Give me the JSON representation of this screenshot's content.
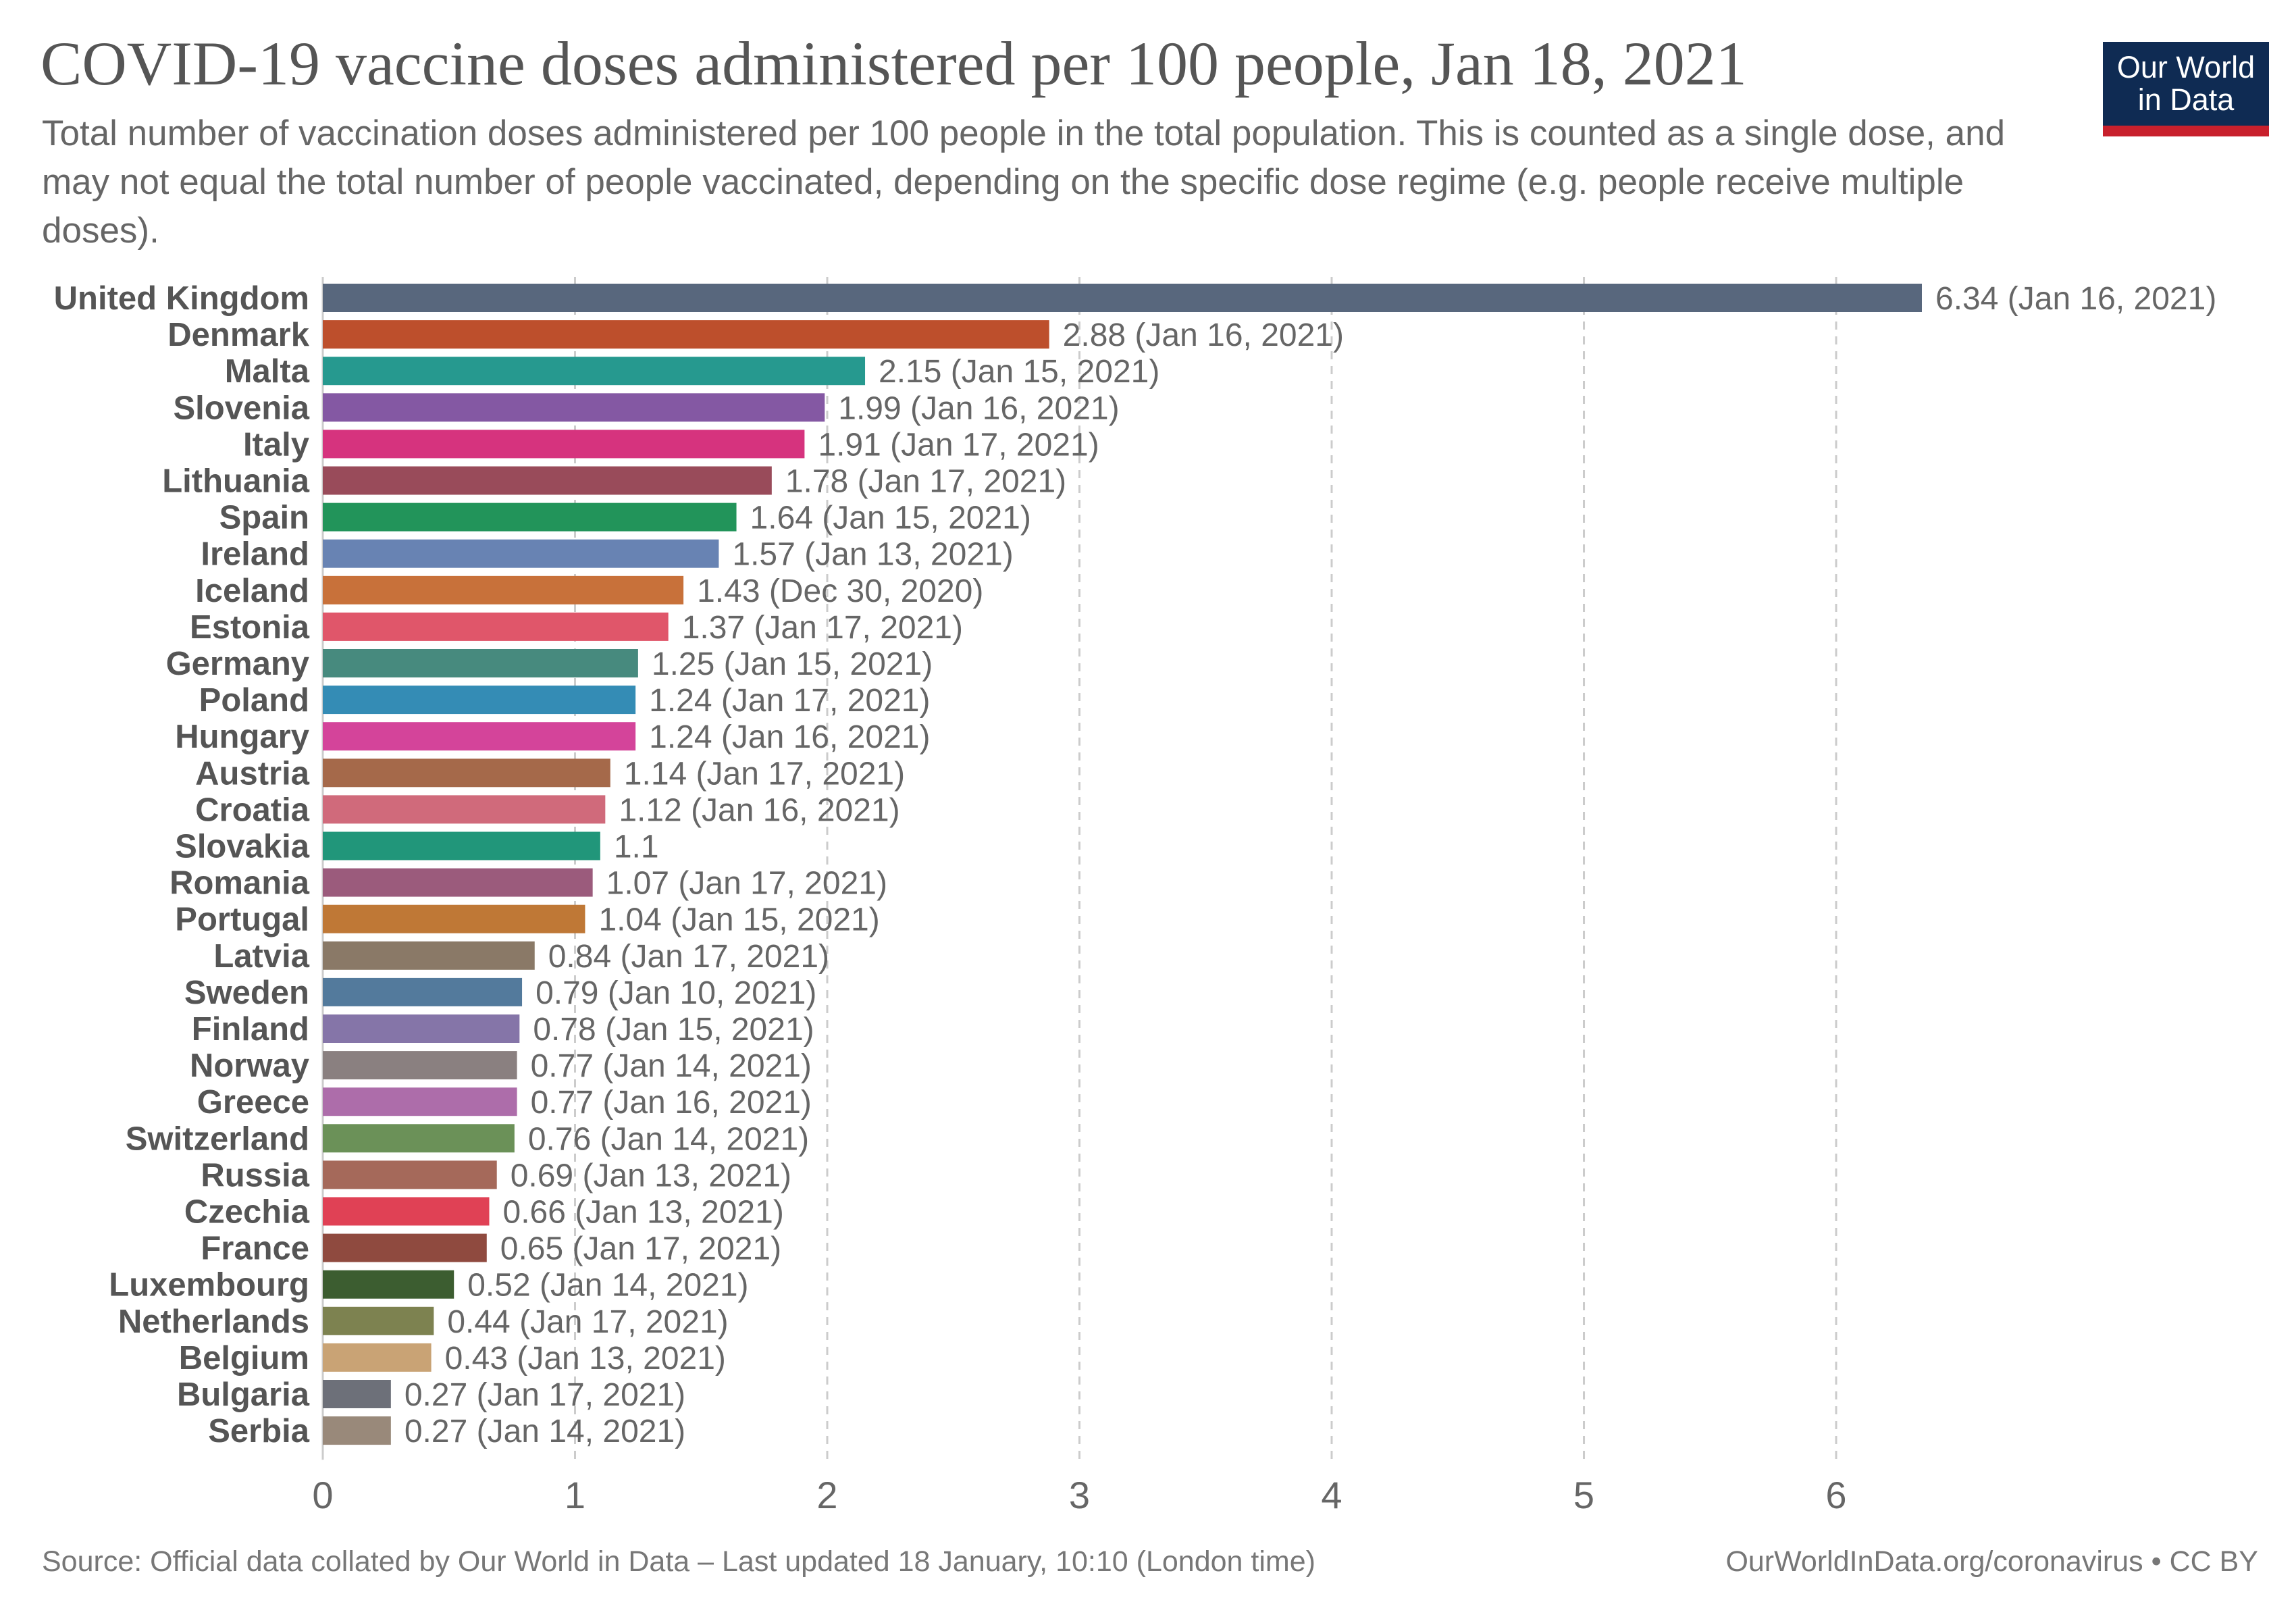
{
  "title": "COVID-19 vaccine doses administered per 100 people, Jan 18, 2021",
  "subtitle": "Total number of vaccination doses administered per 100 people in the total population. This is counted as a single dose, and may not equal the total number of people vaccinated, depending on the specific dose regime (e.g. people receive multiple doses).",
  "logo": {
    "line1": "Our World",
    "line2": "in Data",
    "bg_color": "#0f2b53",
    "accent_color": "#c8202c"
  },
  "footer": {
    "source": "Source: Official data collated by Our World in Data – Last updated 18 January, 10:10 (London time)",
    "right": "OurWorldInData.org/coronavirus • CC BY"
  },
  "chart_data": {
    "type": "bar",
    "orientation": "horizontal",
    "xlim": [
      0,
      6.34
    ],
    "xticks": [
      0,
      1,
      2,
      3,
      4,
      5,
      6
    ],
    "grid": true,
    "categories": [
      "United Kingdom",
      "Denmark",
      "Malta",
      "Slovenia",
      "Italy",
      "Lithuania",
      "Spain",
      "Ireland",
      "Iceland",
      "Estonia",
      "Germany",
      "Poland",
      "Hungary",
      "Austria",
      "Croatia",
      "Slovakia",
      "Romania",
      "Portugal",
      "Latvia",
      "Sweden",
      "Finland",
      "Norway",
      "Greece",
      "Switzerland",
      "Russia",
      "Czechia",
      "France",
      "Luxembourg",
      "Netherlands",
      "Belgium",
      "Bulgaria",
      "Serbia"
    ],
    "values": [
      6.34,
      2.88,
      2.15,
      1.99,
      1.91,
      1.78,
      1.64,
      1.57,
      1.43,
      1.37,
      1.25,
      1.24,
      1.24,
      1.14,
      1.12,
      1.1,
      1.07,
      1.04,
      0.84,
      0.79,
      0.78,
      0.77,
      0.77,
      0.76,
      0.69,
      0.66,
      0.65,
      0.52,
      0.44,
      0.43,
      0.27,
      0.27
    ],
    "value_labels": [
      "6.34 (Jan 16, 2021)",
      "2.88 (Jan 16, 2021)",
      "2.15 (Jan 15, 2021)",
      "1.99 (Jan 16, 2021)",
      "1.91 (Jan 17, 2021)",
      "1.78 (Jan 17, 2021)",
      "1.64 (Jan 15, 2021)",
      "1.57 (Jan 13, 2021)",
      "1.43 (Dec 30, 2020)",
      "1.37 (Jan 17, 2021)",
      "1.25 (Jan 15, 2021)",
      "1.24 (Jan 17, 2021)",
      "1.24 (Jan 16, 2021)",
      "1.14 (Jan 17, 2021)",
      "1.12 (Jan 16, 2021)",
      "1.1",
      "1.07 (Jan 17, 2021)",
      "1.04 (Jan 15, 2021)",
      "0.84 (Jan 17, 2021)",
      "0.79 (Jan 10, 2021)",
      "0.78 (Jan 15, 2021)",
      "0.77 (Jan 14, 2021)",
      "0.77 (Jan 16, 2021)",
      "0.76 (Jan 14, 2021)",
      "0.69 (Jan 13, 2021)",
      "0.66 (Jan 13, 2021)",
      "0.65 (Jan 17, 2021)",
      "0.52 (Jan 14, 2021)",
      "0.44 (Jan 17, 2021)",
      "0.43 (Jan 13, 2021)",
      "0.27 (Jan 17, 2021)",
      "0.27 (Jan 14, 2021)"
    ],
    "colors": [
      "#58677d",
      "#bd4f2c",
      "#26998f",
      "#8458a3",
      "#d6337e",
      "#994b5a",
      "#22945a",
      "#6883b3",
      "#c8713a",
      "#e0566a",
      "#478a7e",
      "#348cb5",
      "#d4449a",
      "#a5694a",
      "#d06a7b",
      "#21967a",
      "#9b5b7c",
      "#bf7836",
      "#8a7967",
      "#537a9c",
      "#8575a8",
      "#8a8080",
      "#ad6daa",
      "#6b9158",
      "#a5695a",
      "#e04155",
      "#8f4a3f",
      "#3c5d30",
      "#7d8250",
      "#c9a375",
      "#6d7079",
      "#99897a"
    ]
  }
}
